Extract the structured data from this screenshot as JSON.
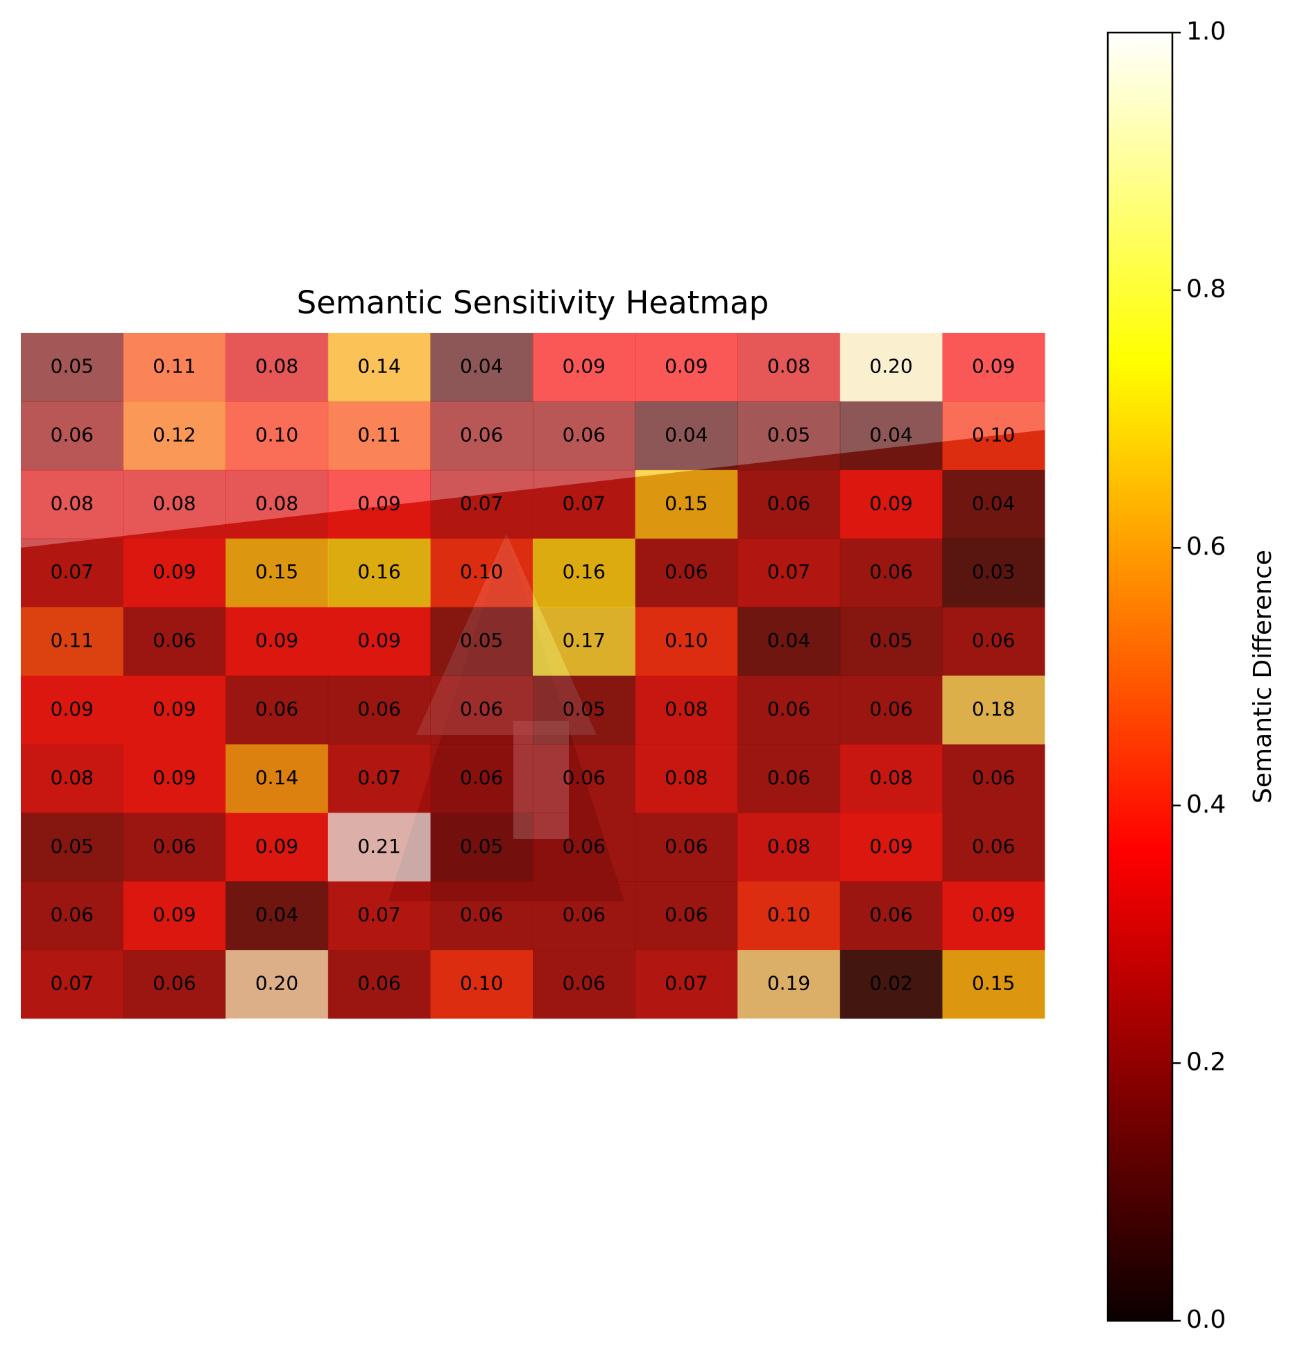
{
  "chart_data": {
    "type": "heatmap",
    "title": "Semantic Sensitivity Heatmap",
    "colormap": "hot",
    "values": [
      [
        0.05,
        0.11,
        0.08,
        0.14,
        0.04,
        0.09,
        0.09,
        0.08,
        0.2,
        0.09
      ],
      [
        0.06,
        0.12,
        0.1,
        0.11,
        0.06,
        0.06,
        0.04,
        0.05,
        0.04,
        0.1
      ],
      [
        0.08,
        0.08,
        0.08,
        0.09,
        0.07,
        0.07,
        0.15,
        0.06,
        0.09,
        0.04
      ],
      [
        0.07,
        0.09,
        0.15,
        0.16,
        0.1,
        0.16,
        0.06,
        0.07,
        0.06,
        0.03
      ],
      [
        0.11,
        0.06,
        0.09,
        0.09,
        0.05,
        0.17,
        0.1,
        0.04,
        0.05,
        0.06
      ],
      [
        0.09,
        0.09,
        0.06,
        0.06,
        0.06,
        0.05,
        0.08,
        0.06,
        0.06,
        0.18
      ],
      [
        0.08,
        0.09,
        0.14,
        0.07,
        0.06,
        0.06,
        0.08,
        0.06,
        0.08,
        0.06
      ],
      [
        0.05,
        0.06,
        0.09,
        0.21,
        0.05,
        0.06,
        0.06,
        0.08,
        0.09,
        0.06
      ],
      [
        0.06,
        0.09,
        0.04,
        0.07,
        0.06,
        0.06,
        0.06,
        0.1,
        0.06,
        0.09
      ],
      [
        0.07,
        0.06,
        0.2,
        0.06,
        0.1,
        0.06,
        0.07,
        0.19,
        0.02,
        0.15
      ]
    ],
    "value_labels": [
      [
        "0.05",
        "0.11",
        "0.08",
        "0.14",
        "0.04",
        "0.09",
        "0.09",
        "0.08",
        "0.20",
        "0.09"
      ],
      [
        "0.06",
        "0.12",
        "0.10",
        "0.11",
        "0.06",
        "0.06",
        "0.04",
        "0.05",
        "0.04",
        "0.10"
      ],
      [
        "0.08",
        "0.08",
        "0.08",
        "0.09",
        "0.07",
        "0.07",
        "0.15",
        "0.06",
        "0.09",
        "0.04"
      ],
      [
        "0.07",
        "0.09",
        "0.15",
        "0.16",
        "0.10",
        "0.16",
        "0.06",
        "0.07",
        "0.06",
        "0.03"
      ],
      [
        "0.11",
        "0.06",
        "0.09",
        "0.09",
        "0.05",
        "0.17",
        "0.10",
        "0.04",
        "0.05",
        "0.06"
      ],
      [
        "0.09",
        "0.09",
        "0.06",
        "0.06",
        "0.06",
        "0.05",
        "0.08",
        "0.06",
        "0.06",
        "0.18"
      ],
      [
        "0.08",
        "0.09",
        "0.14",
        "0.07",
        "0.06",
        "0.06",
        "0.08",
        "0.06",
        "0.08",
        "0.06"
      ],
      [
        "0.05",
        "0.06",
        "0.09",
        "0.21",
        "0.05",
        "0.06",
        "0.06",
        "0.08",
        "0.09",
        "0.06"
      ],
      [
        "0.06",
        "0.09",
        "0.04",
        "0.07",
        "0.06",
        "0.06",
        "0.06",
        "0.10",
        "0.06",
        "0.09"
      ],
      [
        "0.07",
        "0.06",
        "0.20",
        "0.06",
        "0.10",
        "0.06",
        "0.07",
        "0.19",
        "0.02",
        "0.15"
      ]
    ],
    "colorbar": {
      "label": "Semantic Difference",
      "ylim": [
        0,
        1
      ],
      "yticks": [
        {
          "value": 0,
          "label": "0.0"
        },
        0.2,
        0.4,
        0.6,
        0.8,
        {
          "value": 1,
          "label": "1.0"
        }
      ]
    }
  }
}
